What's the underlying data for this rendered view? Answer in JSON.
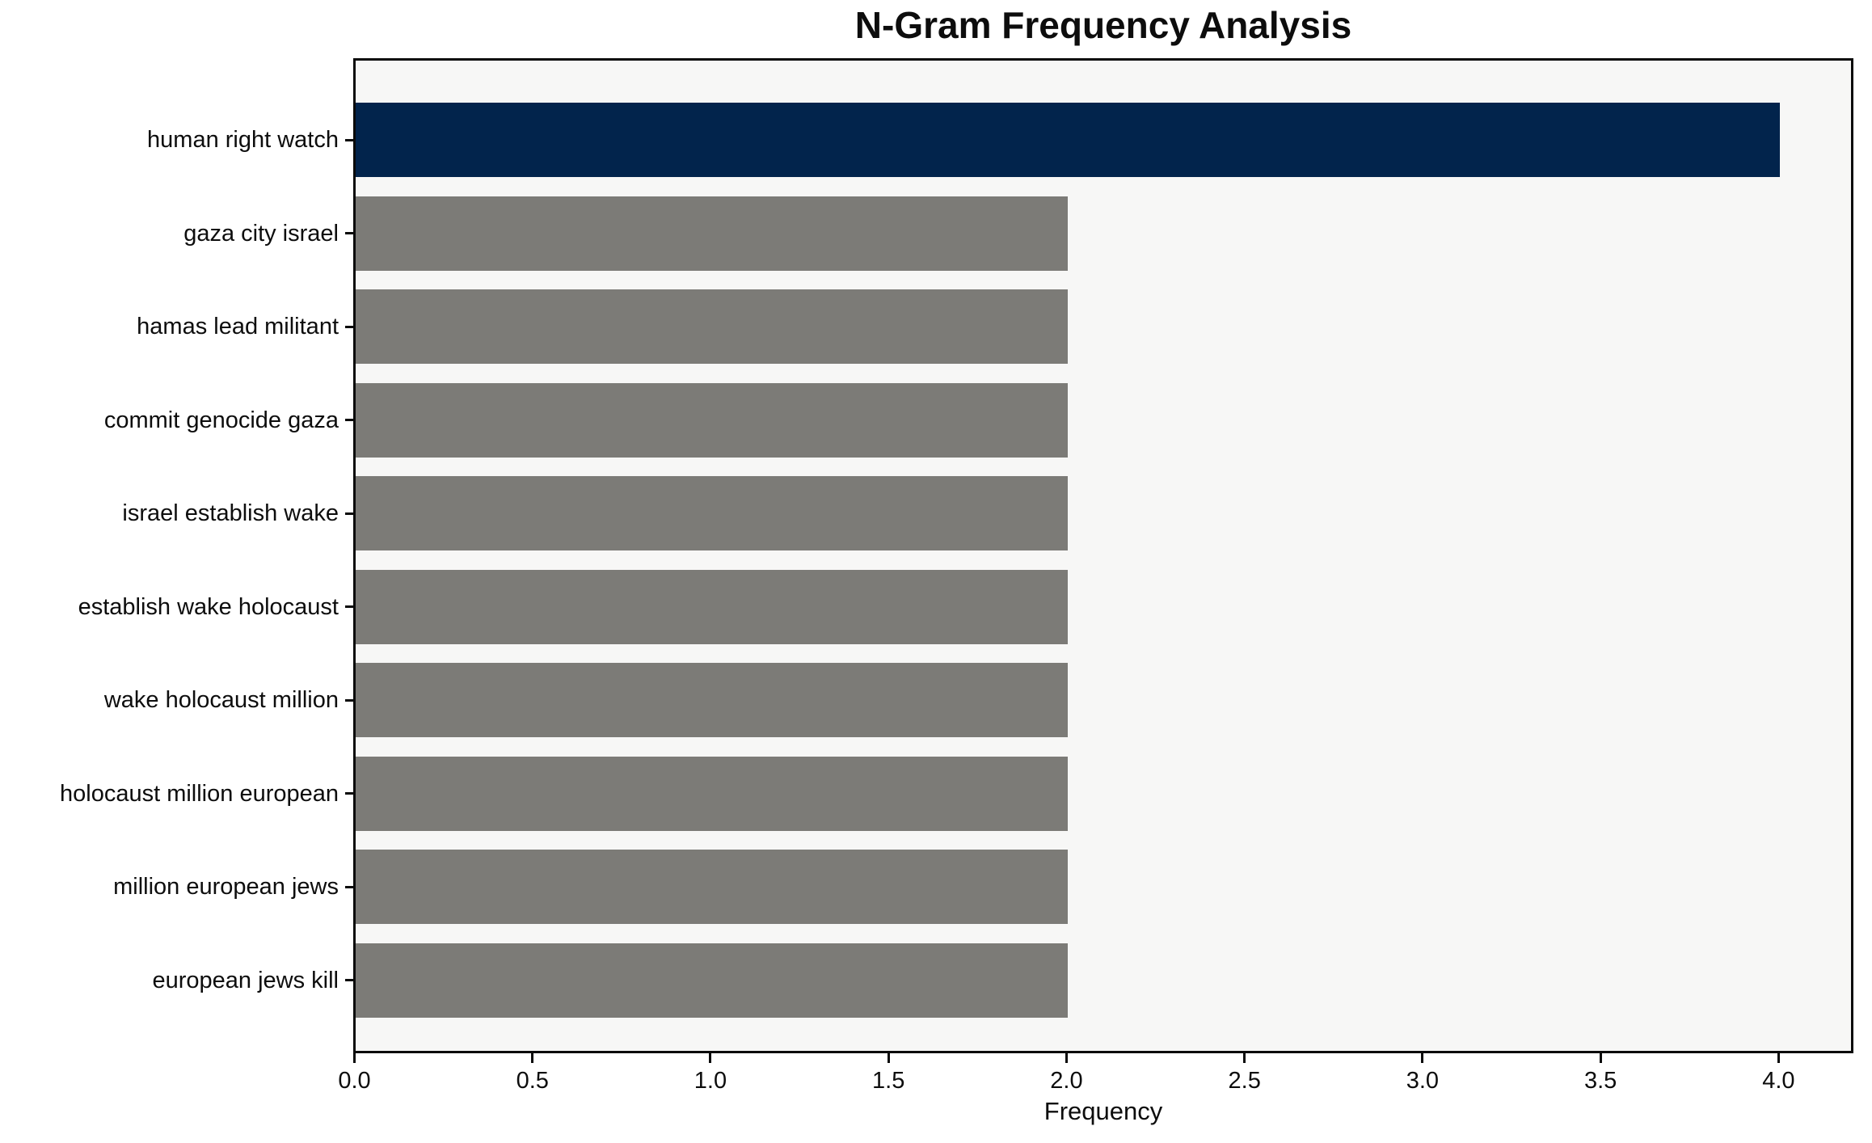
{
  "chart_data": {
    "type": "bar",
    "orientation": "horizontal",
    "title": "N-Gram Frequency Analysis",
    "xlabel": "Frequency",
    "ylabel": "",
    "categories": [
      "human right watch",
      "gaza city israel",
      "hamas lead militant",
      "commit genocide gaza",
      "israel establish wake",
      "establish wake holocaust",
      "wake holocaust million",
      "holocaust million european",
      "million european jews",
      "european jews kill"
    ],
    "values": [
      4,
      2,
      2,
      2,
      2,
      2,
      2,
      2,
      2,
      2
    ],
    "bar_colors": [
      "#02244C",
      "#7C7B77",
      "#7C7B77",
      "#7C7B77",
      "#7C7B77",
      "#7C7B77",
      "#7C7B77",
      "#7C7B77",
      "#7C7B77",
      "#7C7B77"
    ],
    "highlight_color": "#02244C",
    "base_color": "#7C7B77",
    "xtick_values": [
      0.0,
      0.5,
      1.0,
      1.5,
      2.0,
      2.5,
      3.0,
      3.5,
      4.0
    ],
    "xtick_labels": [
      "0.0",
      "0.5",
      "1.0",
      "1.5",
      "2.0",
      "2.5",
      "3.0",
      "3.5",
      "4.0"
    ],
    "xlim": [
      0,
      4.2
    ],
    "grid": false,
    "legend": "none",
    "plot_background": "#F7F7F6",
    "spine_color": "#0A0A0A"
  }
}
